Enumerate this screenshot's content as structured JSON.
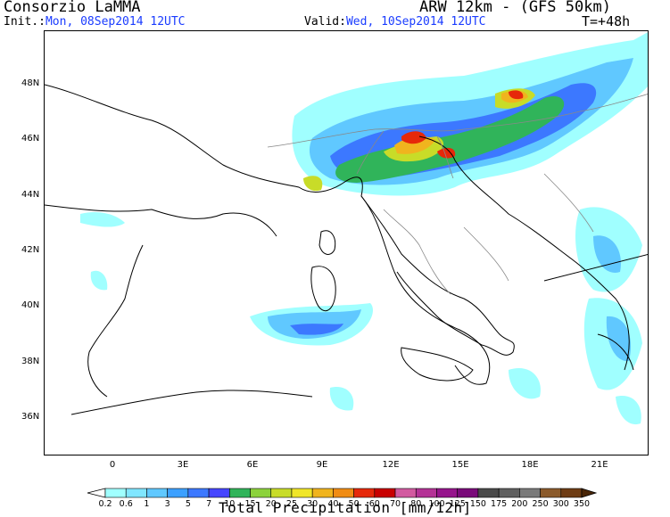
{
  "header": {
    "org": "Consorzio LaMMA",
    "model": "ARW 12km - (GFS 50km)",
    "init_label": "Init.:",
    "init_value": "Mon, 08Sep2014 12UTC",
    "valid_label": "Valid:",
    "valid_value": "Wed, 10Sep2014 12UTC",
    "lead_time": "T=+48h"
  },
  "axes": {
    "lat_ticks": [
      "48N",
      "46N",
      "44N",
      "42N",
      "40N",
      "38N",
      "36N"
    ],
    "lon_ticks": [
      "0",
      "3E",
      "6E",
      "9E",
      "12E",
      "15E",
      "18E",
      "21E"
    ]
  },
  "colorbar": {
    "title": "Total Precipitation [mm/12h]",
    "levels": [
      "0.2",
      "0.6",
      "1",
      "3",
      "5",
      "7",
      "10",
      "15",
      "20",
      "25",
      "30",
      "40",
      "50",
      "60",
      "70",
      "80",
      "100",
      "125",
      "150",
      "175",
      "200",
      "250",
      "300",
      "350"
    ],
    "colors": [
      "#a0ffff",
      "#80e6ff",
      "#60c8ff",
      "#3ca0ff",
      "#3c78ff",
      "#4646ff",
      "#30b45a",
      "#8cd23c",
      "#c8dc28",
      "#f0e628",
      "#f0b41e",
      "#f08c14",
      "#e6280a",
      "#c80000",
      "#d25aa0",
      "#b43296",
      "#96148c",
      "#7a0a7a",
      "#4a4a4a",
      "#606060",
      "#7a7a7a",
      "#8b5a2b",
      "#6e3c14",
      "#4a2608"
    ]
  }
}
